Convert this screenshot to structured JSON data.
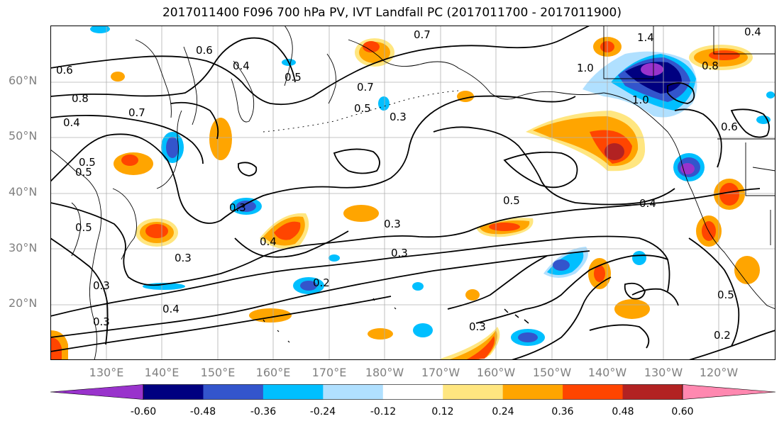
{
  "title": "2017011400 F096 700 hPa PV, IVT Landfall PC (2017011700 - 2017011900)",
  "lat_labels": [
    "60°N",
    "50°N",
    "40°N",
    "30°N",
    "20°N"
  ],
  "lon_labels": [
    "130°E",
    "140°E",
    "150°E",
    "160°E",
    "170°E",
    "180°W",
    "170°W",
    "160°W",
    "150°W",
    "140°W",
    "130°W",
    "120°W"
  ],
  "contour_labels": [
    "0.6",
    "0.4",
    "0.5",
    "0.7",
    "1.4",
    "1.0",
    "0.8",
    "0.6",
    "0.7",
    "0.5",
    "0.3",
    "0.4",
    "0.5",
    "0.3",
    "0.4",
    "0.3",
    "0.5",
    "0.4",
    "0.3",
    "0.3",
    "0.2",
    "0.4",
    "0.3",
    "0.3",
    "0.2",
    "0.5",
    "0.6",
    "0.5",
    "1.0",
    "0.8",
    "0.7",
    "0.5",
    "0.4",
    "0.3"
  ],
  "colorbar": {
    "ticks": [
      "-0.60",
      "-0.48",
      "-0.36",
      "-0.24",
      "-0.12",
      "0.12",
      "0.24",
      "0.36",
      "0.48",
      "0.60"
    ],
    "colors": [
      "#9933cc",
      "#000080",
      "#3355cc",
      "#00bfff",
      "#b0e0ff",
      "#ffffff",
      "#ffe680",
      "#ffa500",
      "#ff4500",
      "#b22222",
      "#ff88b0"
    ],
    "extend": "both"
  },
  "colors": {
    "axis_text": "#808080",
    "contour": "#000000",
    "coast": "#000000",
    "grid": "#b0b0b0"
  }
}
